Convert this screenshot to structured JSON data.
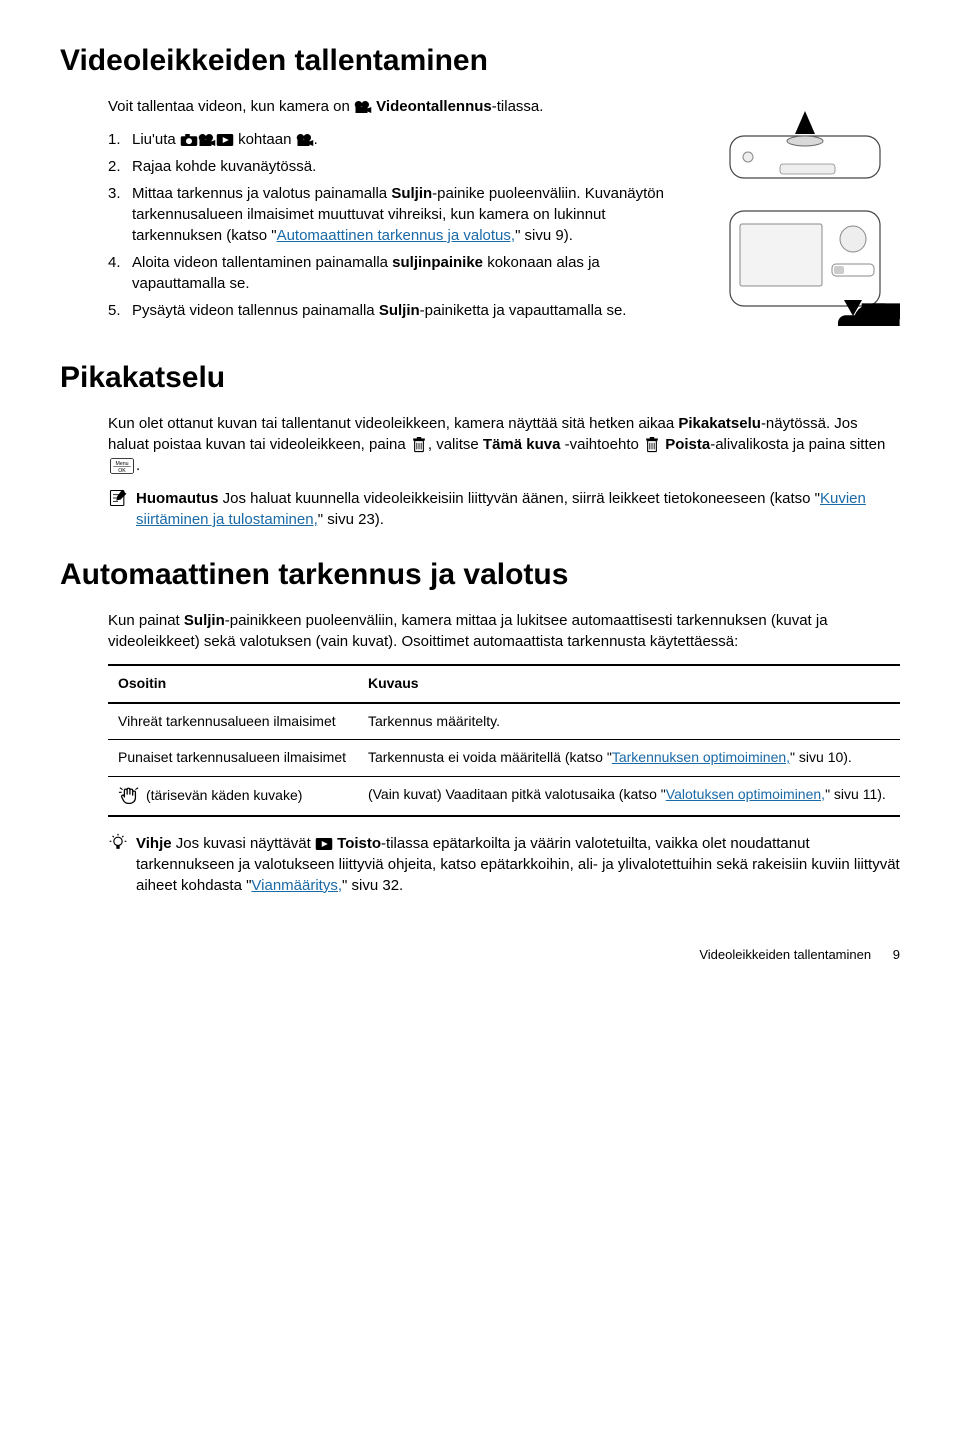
{
  "title": "Videoleikkeiden tallentaminen",
  "intro_prefix": "Voit tallentaa videon, kun kamera on ",
  "intro_mode": "Videontallennus",
  "intro_suffix": "-tilassa.",
  "steps": [
    {
      "num": "1.",
      "parts": [
        {
          "t": "Liu'uta "
        },
        {
          "icon": "camera-icon"
        },
        {
          "icon": "video-icon"
        },
        {
          "icon": "play-icon"
        },
        {
          "t": " kohtaan "
        },
        {
          "icon": "video-icon"
        },
        {
          "t": "."
        }
      ]
    },
    {
      "num": "2.",
      "parts": [
        {
          "t": "Rajaa kohde kuvanäytössä."
        }
      ]
    },
    {
      "num": "3.",
      "parts": [
        {
          "t": "Mittaa tarkennus ja valotus painamalla "
        },
        {
          "b": "Suljin"
        },
        {
          "t": "-painike puoleenväliin. Kuvanäytön tarkennusalueen ilmaisimet muuttuvat vihreiksi, kun kamera on lukinnut tarkennuksen (katso \""
        },
        {
          "link": "Automaattinen tarkennus ja valotus,"
        },
        {
          "t": "\" sivu 9)."
        }
      ]
    },
    {
      "num": "4.",
      "parts": [
        {
          "t": "Aloita videon tallentaminen painamalla "
        },
        {
          "b": "suljinpainike"
        },
        {
          "t": " kokonaan alas ja vapauttamalla se."
        }
      ]
    },
    {
      "num": "5.",
      "parts": [
        {
          "t": "Pysäytä videon tallennus painamalla "
        },
        {
          "b": "Suljin"
        },
        {
          "t": "-painiketta ja vapauttamalla se."
        }
      ]
    }
  ],
  "quickview": {
    "heading": "Pikakatselu",
    "para_parts": [
      {
        "t": "Kun olet ottanut kuvan tai tallentanut videoleikkeen, kamera näyttää sitä hetken aikaa "
      },
      {
        "b": "Pikakatselu"
      },
      {
        "t": "-näytössä. Jos haluat poistaa kuvan tai videoleikkeen, paina "
      },
      {
        "icon": "trash-icon"
      },
      {
        "t": ", valitse "
      },
      {
        "b": "Tämä kuva"
      },
      {
        "t": " -vaihtoehto "
      },
      {
        "icon": "trash-icon"
      },
      {
        "t": " "
      },
      {
        "b": "Poista"
      },
      {
        "t": "-alivalikosta ja paina sitten "
      },
      {
        "icon": "menu-ok-icon"
      },
      {
        "t": "."
      }
    ],
    "note_label": "Huomautus",
    "note_parts": [
      {
        "t": "Jos haluat kuunnella videoleikkeisiin liittyvän äänen, siirrä leikkeet tietokoneeseen (katso \""
      },
      {
        "link": "Kuvien siirtäminen ja tulostaminen,"
      },
      {
        "t": "\" sivu 23)."
      }
    ]
  },
  "autofocus": {
    "heading": "Automaattinen tarkennus ja valotus",
    "para_parts": [
      {
        "t": "Kun painat "
      },
      {
        "b": "Suljin"
      },
      {
        "t": "-painikkeen puoleenväliin, kamera mittaa ja lukitsee automaattisesti tarkennuksen (kuvat ja videoleikkeet) sekä valotuksen (vain kuvat). Osoittimet automaattista tarkennusta käytettäessä:"
      }
    ],
    "table": {
      "col1": "Osoitin",
      "col2": "Kuvaus",
      "rows": [
        {
          "c1": "Vihreät tarkennusalueen ilmaisimet",
          "c2_parts": [
            {
              "t": "Tarkennus määritelty."
            }
          ]
        },
        {
          "c1": "Punaiset tarkennusalueen ilmaisimet",
          "c2_parts": [
            {
              "t": "Tarkennusta ei voida määritellä (katso \""
            },
            {
              "link": "Tarkennuksen optimoiminen,"
            },
            {
              "t": "\" sivu 10)."
            }
          ]
        },
        {
          "c1_icon": "hand-shake-icon",
          "c1": " (tärisevän käden kuvake)",
          "c2_parts": [
            {
              "t": "(Vain kuvat) Vaaditaan pitkä valotusaika (katso \""
            },
            {
              "link": "Valotuksen optimoiminen,"
            },
            {
              "t": "\" sivu 11)."
            }
          ]
        }
      ]
    },
    "tip_label": "Vihje",
    "tip_parts": [
      {
        "t": "Jos kuvasi näyttävät "
      },
      {
        "icon": "play-icon"
      },
      {
        "t": " "
      },
      {
        "b": "Toisto"
      },
      {
        "t": "-tilassa epätarkoilta ja väärin valotetuilta, vaikka olet noudattanut tarkennukseen ja valotukseen liittyviä ohjeita, katso epätarkkoihin, ali- ja ylivalotettuihin sekä rakeisiin kuviin liittyvät aiheet kohdasta \""
      },
      {
        "link": "Vianmääritys,"
      },
      {
        "t": "\" sivu 32."
      }
    ]
  },
  "footer_left": "Videoleikkeiden tallentaminen",
  "footer_page": "9",
  "colors": {
    "link": "#1a6aa8",
    "text": "#000000",
    "bg": "#ffffff"
  }
}
